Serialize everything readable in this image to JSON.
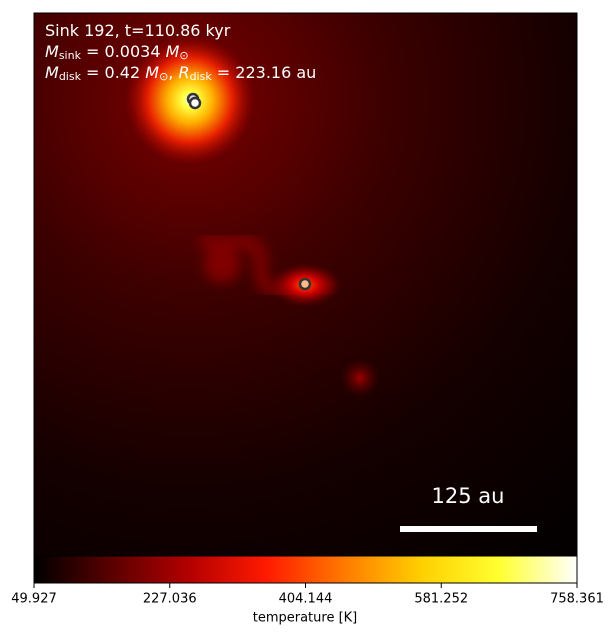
{
  "chart_data": {
    "type": "image",
    "annotation_lines": [
      [
        {
          "text": "Sink 192, t=110.86 kyr",
          "style": "normal"
        }
      ],
      [
        {
          "text": "M",
          "style": "italic"
        },
        {
          "text": "sink",
          "style": "sub"
        },
        {
          "text": " = 0.0034 ",
          "style": "normal"
        },
        {
          "text": "M",
          "style": "italic"
        },
        {
          "text": "⊙",
          "style": "sub"
        }
      ],
      [
        {
          "text": "M",
          "style": "italic"
        },
        {
          "text": "disk",
          "style": "sub"
        },
        {
          "text": " = 0.42 ",
          "style": "normal"
        },
        {
          "text": "M",
          "style": "italic"
        },
        {
          "text": "⊙",
          "style": "sub"
        },
        {
          "text": ", ",
          "style": "normal"
        },
        {
          "text": "R",
          "style": "italic"
        },
        {
          "text": "disk",
          "style": "sub"
        },
        {
          "text": " = 223.16 au",
          "style": "normal"
        }
      ]
    ],
    "scale_bar_label": "125 au",
    "colorbar": {
      "label": "temperature [K]",
      "xlim": [
        49.927,
        758.361
      ],
      "xticks": [
        49.927,
        227.036,
        404.144,
        581.252,
        758.361
      ],
      "colormap": [
        "#000000",
        "#5a0000",
        "#b40000",
        "#ff1a00",
        "#ff7a00",
        "#ffd000",
        "#ffff30",
        "#ffffff"
      ]
    }
  }
}
